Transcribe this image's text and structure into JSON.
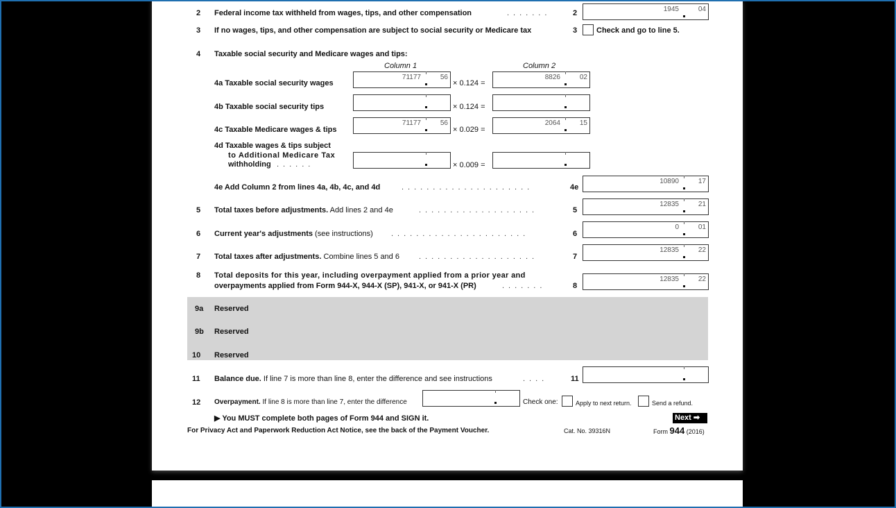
{
  "form": {
    "line2": {
      "num": "2",
      "label": "Federal income tax withheld from wages, tips, and other compensation",
      "box": "2",
      "whole": "1945",
      "cents": "04"
    },
    "line3": {
      "num": "3",
      "label": "If no wages, tips, and other compensation are subject to social security or Medicare tax",
      "box": "3",
      "check_label": "Check and go to line 5."
    },
    "line4": {
      "num": "4",
      "label": "Taxable social security and Medicare wages and tips:",
      "col1": "Column 1",
      "col2": "Column 2"
    },
    "line4a": {
      "label": "4a  Taxable social security wages",
      "c1_whole": "71177",
      "c1_cents": "56",
      "rate": "× 0.124 =",
      "c2_whole": "8826",
      "c2_cents": "02"
    },
    "line4b": {
      "label": "4b  Taxable social security tips",
      "rate": "× 0.124 ="
    },
    "line4c": {
      "label": "4c  Taxable Medicare wages & tips",
      "c1_whole": "71177",
      "c1_cents": "56",
      "rate": "× 0.029 =",
      "c2_whole": "2064",
      "c2_cents": "15"
    },
    "line4d": {
      "label1": "4d  Taxable wages & tips subject",
      "label2": "to Additional Medicare Tax",
      "label3": "withholding",
      "rate": "× 0.009 ="
    },
    "line4e": {
      "label": "4e  Add Column 2 from lines 4a, 4b, 4c, and 4d",
      "box": "4e",
      "whole": "10890",
      "cents": "17"
    },
    "line5": {
      "num": "5",
      "bold": "Total taxes before adjustments.",
      "rest": " Add lines 2 and 4e",
      "box": "5",
      "whole": "12835",
      "cents": "21"
    },
    "line6": {
      "num": "6",
      "bold": "Current year's adjustments",
      "rest": " (see instructions)",
      "box": "6",
      "whole": "0",
      "cents": "01"
    },
    "line7": {
      "num": "7",
      "bold": "Total taxes after adjustments.",
      "rest": " Combine lines 5 and 6",
      "box": "7",
      "whole": "12835",
      "cents": "22"
    },
    "line8": {
      "num": "8",
      "label1": "Total deposits for this year, including overpayment applied from a prior year and",
      "label2": "overpayments applied from Form 944-X, 944-X (SP), 941-X, or 941-X (PR)",
      "box": "8",
      "whole": "12835",
      "cents": "22"
    },
    "line9a": {
      "num": "9a",
      "label": "Reserved"
    },
    "line9b": {
      "num": "9b",
      "label": "Reserved"
    },
    "line10": {
      "num": "10",
      "label": "Reserved"
    },
    "line11": {
      "num": "11",
      "bold": "Balance due.",
      "rest": " If line 7 is more than line 8, enter the difference and see instructions",
      "box": "11"
    },
    "line12": {
      "num": "12",
      "bold": "Overpayment.",
      "rest": " If line 8 is more than line 7, enter the difference",
      "check_one": "Check one:",
      "opt1": "Apply to next return.",
      "opt2": "Send a refund."
    },
    "must": "▶  You MUST complete both pages of Form 944 and SIGN it.",
    "next": "Next",
    "footer_left": "For Privacy Act and Paperwork Reduction Act Notice, see the back of the Payment Voucher.",
    "cat_no": "Cat. No. 39316N",
    "form_word": "Form",
    "form_num": "944",
    "form_year": "(2016)"
  }
}
